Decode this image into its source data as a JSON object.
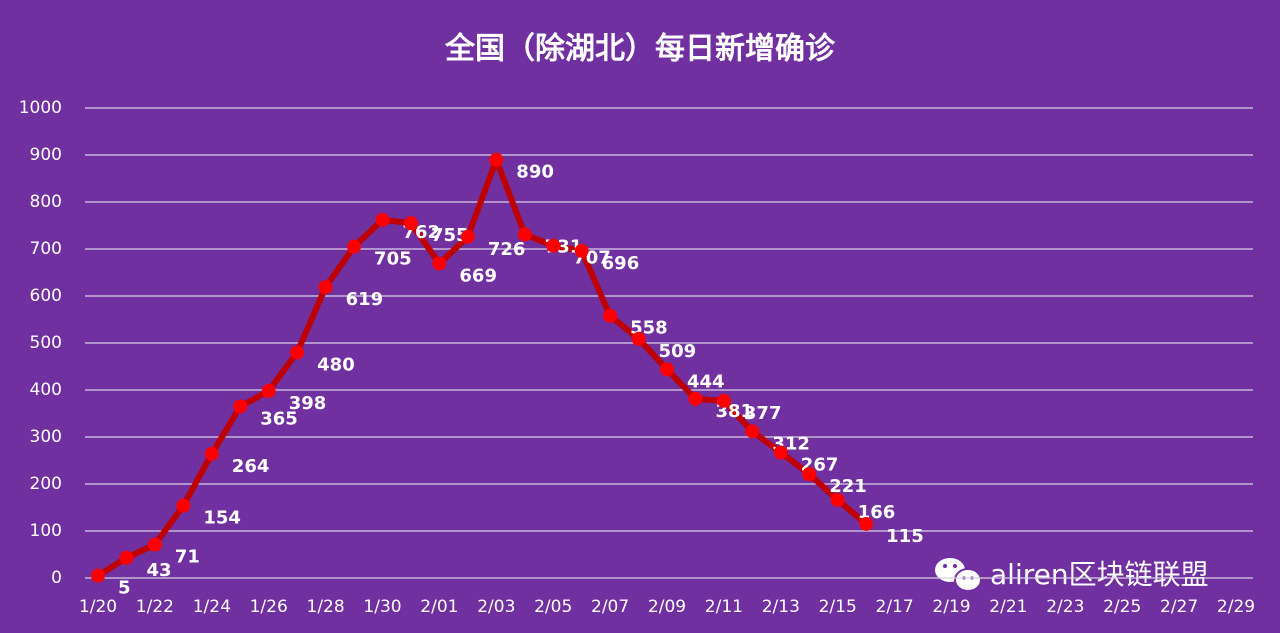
{
  "chart_data": {
    "type": "line",
    "title": "全国（除湖北）每日新增确诊",
    "categories": [
      "1/20",
      null,
      "1/22",
      null,
      "1/24",
      null,
      "1/26",
      null,
      "1/28",
      null,
      "1/30",
      null,
      "2/01",
      null,
      "2/03",
      null,
      "2/05",
      null,
      "2/07",
      null,
      "2/09",
      null,
      "2/11",
      null,
      "2/13",
      null,
      "2/15",
      null,
      "2/17",
      null,
      "2/19",
      null,
      "2/21",
      null,
      "2/23",
      null,
      "2/25",
      null,
      "2/27",
      null,
      "2/29"
    ],
    "values": [
      5,
      43,
      71,
      154,
      264,
      365,
      398,
      480,
      619,
      705,
      762,
      755,
      669,
      726,
      890,
      731,
      707,
      696,
      558,
      509,
      444,
      381,
      377,
      312,
      267,
      221,
      166,
      115,
      null,
      null,
      null,
      null,
      null,
      null,
      null,
      null,
      null,
      null,
      null,
      null,
      null
    ],
    "line_color": "#c00000",
    "marker_color": "#ff0000",
    "ylim": [
      0,
      1000
    ],
    "yticks": [
      0,
      100,
      200,
      300,
      400,
      500,
      600,
      700,
      800,
      900,
      1000
    ],
    "grid": true,
    "watermark": "aliren区块链联盟"
  }
}
